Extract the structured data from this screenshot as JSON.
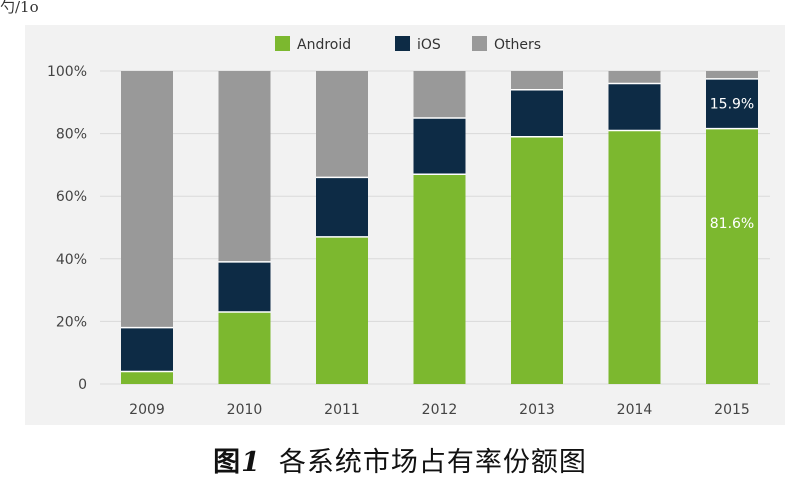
{
  "top_text": "勺/1o",
  "caption": {
    "fig_prefix": "图",
    "fig_number": "1",
    "text": "各系统市场占有率份额图"
  },
  "chart_data": {
    "type": "bar",
    "stacked": true,
    "categories": [
      "2009",
      "2010",
      "2011",
      "2012",
      "2013",
      "2014",
      "2015"
    ],
    "series": [
      {
        "name": "Android",
        "color": "#7cb82f",
        "values": [
          4,
          23,
          47,
          67,
          79,
          81,
          81.6
        ]
      },
      {
        "name": "iOS",
        "color": "#0d2b45",
        "values": [
          14,
          16,
          19,
          18,
          15,
          15,
          15.9
        ]
      },
      {
        "name": "Others",
        "color": "#999999",
        "values": [
          82,
          61,
          34,
          15,
          6,
          4,
          2.5
        ]
      }
    ],
    "yticks": [
      "0",
      "20%",
      "40%",
      "60%",
      "80%",
      "100%"
    ],
    "ylim": [
      0,
      100
    ],
    "legend_position": "top-center",
    "grid": true,
    "annotations": [
      {
        "category": "2015",
        "series": "iOS",
        "text": "15.9%"
      },
      {
        "category": "2015",
        "series": "Android",
        "text": "81.6%"
      }
    ]
  }
}
